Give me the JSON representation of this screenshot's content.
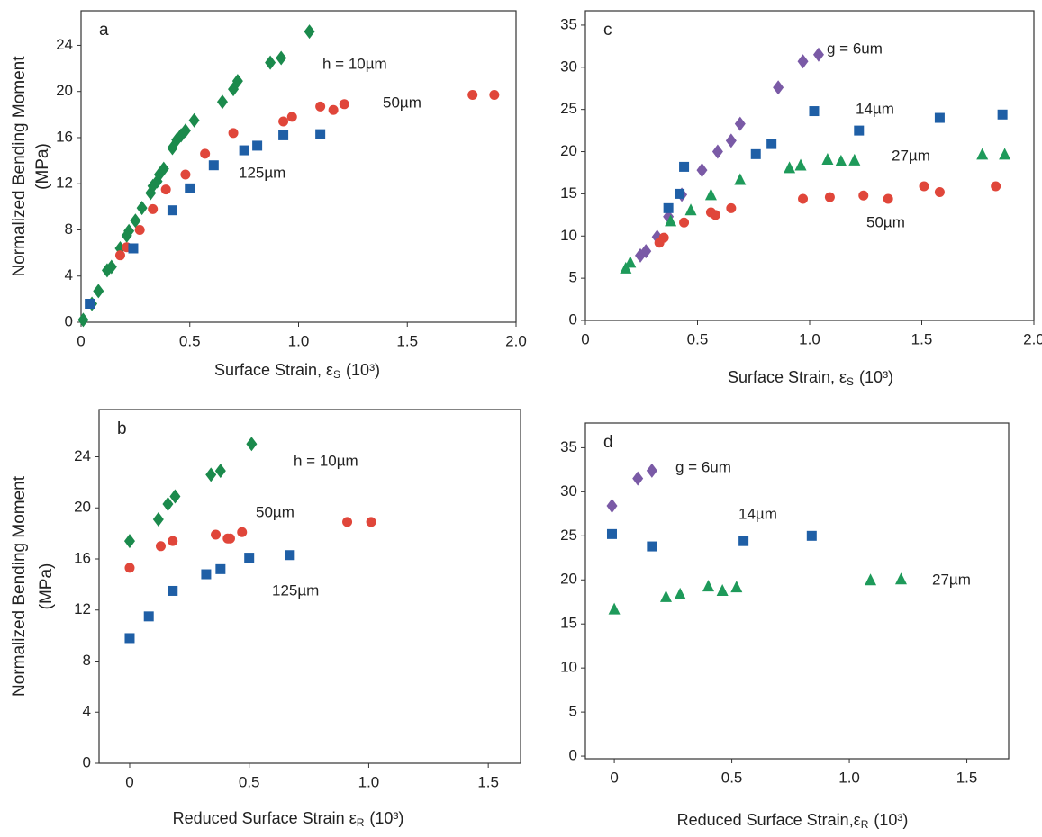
{
  "chart_data": [
    {
      "type": "scatter",
      "panel_label": "a",
      "ylabel": [
        "Normalized Bending Moment",
        "(MPa)"
      ],
      "xlabel": {
        "text": "Surface Strain, ε",
        "sub": "S",
        "tail": "(10³)"
      },
      "xlim": [
        0,
        2.0
      ],
      "ylim": [
        0,
        27
      ],
      "xticks": [
        0,
        0.5,
        {
          "value": 1,
          "label": "1.0"
        },
        1.5,
        {
          "value": 2,
          "label": "2.0"
        }
      ],
      "yticks": [
        0,
        4,
        8,
        12,
        16,
        20,
        24
      ],
      "series": [
        {
          "name": "h = 10µm",
          "color": "#1b8a4c",
          "marker": "diamond",
          "x": [
            0.01,
            0.05,
            0.08,
            0.12,
            0.14,
            0.18,
            0.21,
            0.22,
            0.25,
            0.28,
            0.32,
            0.33,
            0.35,
            0.36,
            0.38,
            0.42,
            0.44,
            0.46,
            0.48,
            0.52,
            0.65,
            0.7,
            0.72,
            0.87,
            0.92,
            1.05
          ],
          "values": [
            0.2,
            1.6,
            2.7,
            4.5,
            4.8,
            6.4,
            7.5,
            7.9,
            8.8,
            9.9,
            11.2,
            11.8,
            12.2,
            12.8,
            13.3,
            15.1,
            15.8,
            16.2,
            16.6,
            17.5,
            19.1,
            20.2,
            20.9,
            22.5,
            22.9,
            25.2
          ]
        },
        {
          "name": "50µm",
          "color": "#e0463a",
          "marker": "circle",
          "x": [
            0.18,
            0.21,
            0.27,
            0.33,
            0.39,
            0.48,
            0.57,
            0.7,
            0.93,
            0.97,
            1.1,
            1.16,
            1.21,
            1.8,
            1.9
          ],
          "values": [
            5.8,
            6.5,
            8.0,
            9.8,
            11.5,
            12.8,
            14.6,
            16.4,
            17.4,
            17.8,
            18.7,
            18.4,
            18.9,
            19.7,
            19.7
          ]
        },
        {
          "name": "125µm",
          "color": "#1f5fa6",
          "marker": "square",
          "x": [
            0.04,
            0.24,
            0.42,
            0.5,
            0.61,
            0.75,
            0.81,
            0.93,
            1.1
          ],
          "values": [
            1.6,
            6.4,
            9.7,
            11.6,
            13.6,
            14.9,
            15.3,
            16.2,
            16.3
          ]
        }
      ]
    },
    {
      "type": "scatter",
      "panel_label": "b",
      "ylabel": [
        "Normalized Bending Moment",
        "(MPa)"
      ],
      "xlabel": {
        "text": "Reduced Surface Strain  ε",
        "sub": "R",
        "tail": "(10³)"
      },
      "xlim": [
        -0.128,
        1.635
      ],
      "ylim": [
        0,
        27.7
      ],
      "xticks": [
        0,
        0.5,
        {
          "value": 1,
          "label": "1.0"
        },
        1.5
      ],
      "yticks": [
        0,
        4,
        8,
        12,
        16,
        20,
        24
      ],
      "series": [
        {
          "name": "h = 10µm",
          "color": "#1b8a4c",
          "marker": "diamond",
          "x": [
            0,
            0.12,
            0.16,
            0.19,
            0.34,
            0.38,
            0.51
          ],
          "values": [
            17.4,
            19.1,
            20.3,
            20.9,
            22.6,
            22.9,
            25.0
          ]
        },
        {
          "name": "50µm",
          "color": "#e0463a",
          "marker": "circle",
          "x": [
            0,
            0.13,
            0.18,
            0.36,
            0.41,
            0.42,
            0.47,
            0.91,
            1.01
          ],
          "values": [
            15.3,
            17.0,
            17.4,
            17.9,
            17.6,
            17.6,
            18.1,
            18.9,
            18.9
          ]
        },
        {
          "name": "125µm",
          "color": "#1f5fa6",
          "marker": "square",
          "x": [
            0,
            0.08,
            0.18,
            0.32,
            0.38,
            0.5,
            0.67
          ],
          "values": [
            9.8,
            11.5,
            13.5,
            14.8,
            15.2,
            16.1,
            16.3
          ]
        }
      ]
    },
    {
      "type": "scatter",
      "panel_label": "c",
      "xlabel": {
        "text": "Surface Strain, ε",
        "sub": "S",
        "tail": "(10³)"
      },
      "xlim": [
        0,
        2.0
      ],
      "ylim": [
        0,
        36.7
      ],
      "xticks": [
        0,
        0.5,
        {
          "value": 1,
          "label": "1.0"
        },
        1.5,
        {
          "value": 2,
          "label": "2.0"
        }
      ],
      "yticks": [
        0,
        5,
        10,
        15,
        20,
        25,
        30,
        35
      ],
      "series": [
        {
          "name": "g = 6um",
          "color": "#7a5aa6",
          "marker": "diamond",
          "x": [
            0.245,
            0.27,
            0.32,
            0.37,
            0.43,
            0.52,
            0.59,
            0.65,
            0.69,
            0.86,
            0.97,
            1.04
          ],
          "values": [
            7.7,
            8.2,
            9.9,
            12.3,
            14.9,
            17.8,
            20.0,
            21.3,
            23.3,
            27.6,
            30.7,
            31.5
          ]
        },
        {
          "name": "14µm",
          "color": "#1f5fa6",
          "marker": "square",
          "x": [
            0.37,
            0.42,
            0.44,
            0.76,
            0.83,
            1.02,
            1.22,
            1.58,
            1.86
          ],
          "values": [
            13.3,
            15.0,
            18.2,
            19.7,
            20.9,
            24.8,
            22.5,
            24.0,
            24.4
          ]
        },
        {
          "name": "27µm",
          "color": "#1e9a5a",
          "marker": "triangle",
          "x": [
            0.18,
            0.2,
            0.38,
            0.47,
            0.56,
            0.69,
            0.91,
            0.96,
            1.08,
            1.14,
            1.2,
            1.77,
            1.87
          ],
          "values": [
            6.2,
            6.9,
            11.8,
            13.1,
            14.9,
            16.7,
            18.1,
            18.4,
            19.1,
            18.9,
            19.0,
            19.7,
            19.7
          ]
        },
        {
          "name": "50µm",
          "color": "#e0463a",
          "marker": "circle",
          "x": [
            0.33,
            0.35,
            0.44,
            0.56,
            0.58,
            0.65,
            0.97,
            1.09,
            1.24,
            1.35,
            1.51,
            1.58,
            1.83
          ],
          "values": [
            9.2,
            9.8,
            11.6,
            12.8,
            12.5,
            13.3,
            14.4,
            14.6,
            14.8,
            14.4,
            15.9,
            15.2,
            15.9
          ]
        }
      ]
    },
    {
      "type": "scatter",
      "panel_label": "d",
      "xlabel": {
        "text": "Reduced Surface Strain,ε",
        "sub": "R",
        "tail": "(10³)"
      },
      "xlim": [
        -0.123,
        1.678
      ],
      "ylim": [
        -0.3,
        37.8
      ],
      "xticks": [
        0,
        0.5,
        {
          "value": 1,
          "label": "1.0"
        },
        1.5
      ],
      "yticks": [
        0,
        5,
        10,
        15,
        20,
        25,
        30,
        35
      ],
      "series": [
        {
          "name": "g = 6um",
          "color": "#7a5aa6",
          "marker": "diamond",
          "x": [
            -0.01,
            0.1,
            0.16
          ],
          "values": [
            28.4,
            31.5,
            32.4
          ]
        },
        {
          "name": "14µm",
          "color": "#1f5fa6",
          "marker": "square",
          "x": [
            -0.01,
            0.16,
            0.55,
            0.84
          ],
          "values": [
            25.2,
            23.8,
            24.4,
            25.0
          ]
        },
        {
          "name": "27µm",
          "color": "#1e9a5a",
          "marker": "triangle",
          "x": [
            0,
            0.22,
            0.28,
            0.4,
            0.46,
            0.52,
            1.09,
            1.22
          ],
          "values": [
            16.7,
            18.1,
            18.4,
            19.3,
            18.8,
            19.2,
            20.0,
            20.1
          ]
        }
      ]
    }
  ]
}
